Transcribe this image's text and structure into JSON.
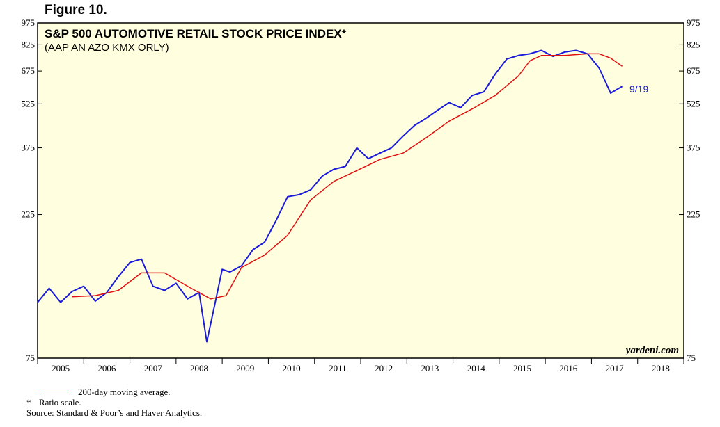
{
  "figure_label": "Figure 10.",
  "colors": {
    "background": "#ffffe0",
    "price_line": "#1a1adc",
    "moving_average_line": "#e01010"
  },
  "chart_data": {
    "type": "line",
    "title": "S&P 500 AUTOMOTIVE RETAIL STOCK PRICE INDEX*",
    "subtitle": "(AAP AN AZO KMX ORLY)",
    "y_scale": "log",
    "ylim": [
      75,
      975
    ],
    "y_ticks": [
      75,
      225,
      375,
      525,
      675,
      825,
      975
    ],
    "xlim": [
      "2005-01-01",
      "2019-01-01"
    ],
    "x_tick_labels": [
      "2005",
      "2006",
      "2007",
      "2008",
      "2009",
      "2010",
      "2011",
      "2012",
      "2013",
      "2014",
      "2015",
      "2016",
      "2017",
      "2018"
    ],
    "grid": false,
    "legend": "below chart",
    "last_date_label": "9/19",
    "credit": "yardeni.com",
    "series": [
      {
        "name": "S&P 500 Automotive Retail Stock Price Index",
        "x": [
          "2005-01",
          "2005-04",
          "2005-07",
          "2005-10",
          "2006-01",
          "2006-04",
          "2006-07",
          "2006-10",
          "2007-01",
          "2007-04",
          "2007-07",
          "2007-10",
          "2008-01",
          "2008-04",
          "2008-07",
          "2008-09",
          "2008-11",
          "2009-01",
          "2009-03",
          "2009-06",
          "2009-09",
          "2009-12",
          "2010-03",
          "2010-06",
          "2010-09",
          "2010-12",
          "2011-03",
          "2011-06",
          "2011-09",
          "2011-12",
          "2012-03",
          "2012-06",
          "2012-09",
          "2012-12",
          "2013-03",
          "2013-06",
          "2013-09",
          "2013-12",
          "2014-03",
          "2014-06",
          "2014-09",
          "2014-12",
          "2015-03",
          "2015-06",
          "2015-09",
          "2015-12",
          "2016-03",
          "2016-06",
          "2016-09",
          "2016-12",
          "2017-03",
          "2017-06",
          "2017-09"
        ],
        "values": [
          115,
          128,
          115,
          125,
          130,
          116,
          124,
          140,
          156,
          160,
          130,
          126,
          133,
          118,
          124,
          85,
          112,
          148,
          145,
          152,
          172,
          182,
          215,
          258,
          262,
          272,
          302,
          318,
          325,
          375,
          345,
          360,
          375,
          410,
          445,
          470,
          500,
          530,
          510,
          560,
          575,
          660,
          740,
          760,
          770,
          790,
          755,
          780,
          790,
          770,
          690,
          570,
          600
        ]
      },
      {
        "name": "200-day moving average.",
        "x": [
          "2005-10",
          "2006-04",
          "2006-10",
          "2007-04",
          "2007-10",
          "2008-04",
          "2008-10",
          "2009-02",
          "2009-06",
          "2009-12",
          "2010-06",
          "2010-12",
          "2011-06",
          "2011-12",
          "2012-06",
          "2012-12",
          "2013-06",
          "2013-12",
          "2014-06",
          "2014-12",
          "2015-06",
          "2015-09",
          "2015-12",
          "2016-06",
          "2016-12",
          "2017-03",
          "2017-06",
          "2017-09"
        ],
        "values": [
          120,
          121,
          126,
          144,
          144,
          130,
          118,
          121,
          150,
          165,
          192,
          252,
          290,
          315,
          343,
          360,
          405,
          460,
          505,
          560,
          650,
          730,
          760,
          760,
          770,
          770,
          745,
          700
        ]
      }
    ]
  },
  "footer": {
    "legend_label": "200-day moving average.",
    "note_mark": "*",
    "note_text": "Ratio scale.",
    "source": "Source: Standard & Poor’s and Haver Analytics."
  }
}
